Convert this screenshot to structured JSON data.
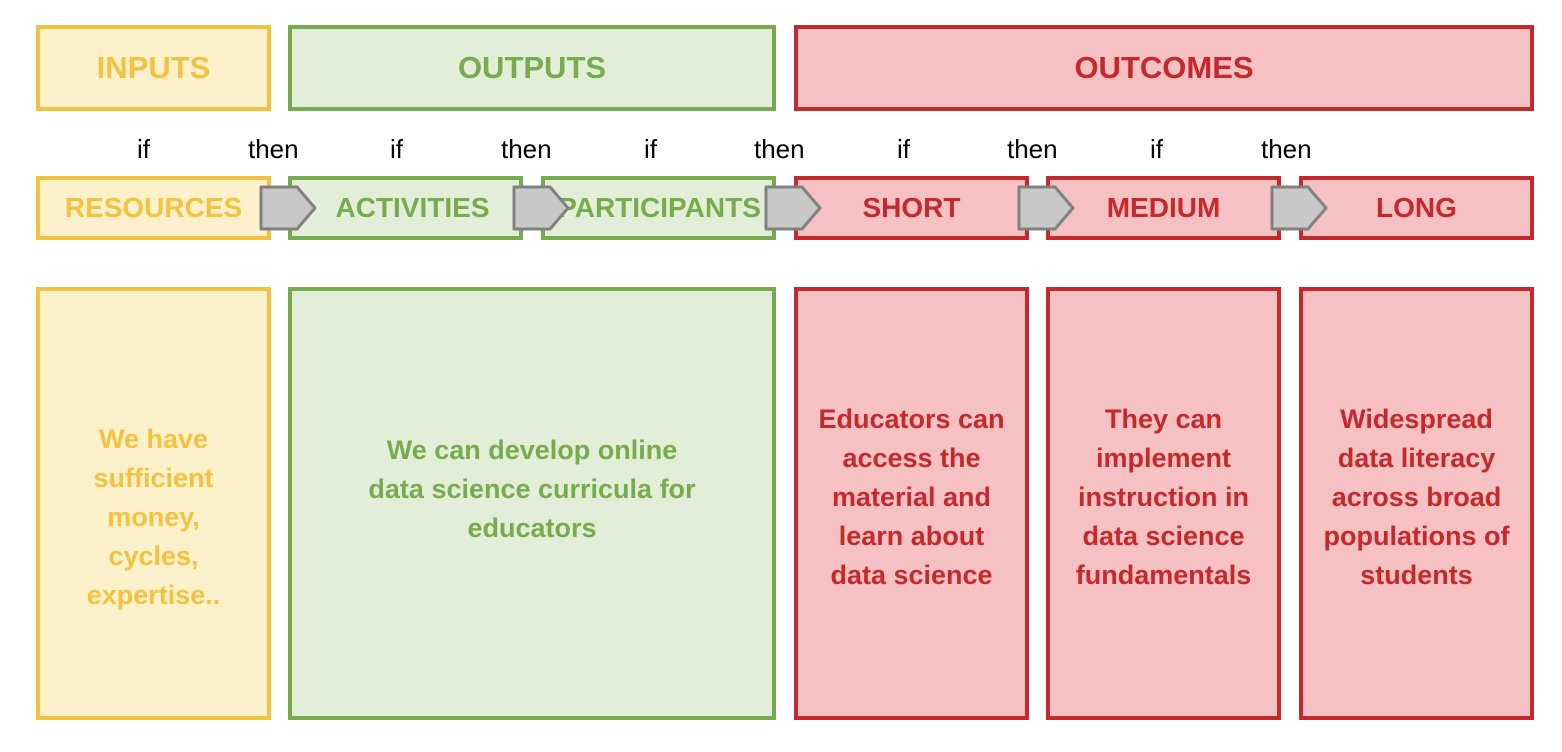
{
  "headers": {
    "inputs": "INPUTS",
    "outputs": "OUTPUTS",
    "outcomes": "OUTCOMES"
  },
  "connectors": [
    "if",
    "then",
    "if",
    "then",
    "if",
    "then",
    "if",
    "then",
    "if",
    "then"
  ],
  "stages": {
    "resources": "RESOURCES",
    "activities": "ACTIVITIES",
    "participants": "PARTICIPANTS",
    "short": "SHORT",
    "medium": "MEDIUM",
    "long": "LONG"
  },
  "descriptions": {
    "resources": "We have sufficient money, cycles, expertise..",
    "outputs": "We can develop online data science curricula for educators",
    "short": "Educators can access the material and learn about data science",
    "medium": "They can implement instruction in data science fundamentals",
    "long": "Widespread data literacy across broad populations of students"
  },
  "colors": {
    "inputs_fill": "#FDF1CC",
    "inputs_border": "#F3C33F",
    "outputs_fill": "#E2EED8",
    "outputs_border": "#76AB4E",
    "outcomes_fill": "#F5C1C3",
    "outcomes_border": "#C5292B",
    "arrow_fill": "#C8C8C8",
    "arrow_border": "#808080"
  }
}
